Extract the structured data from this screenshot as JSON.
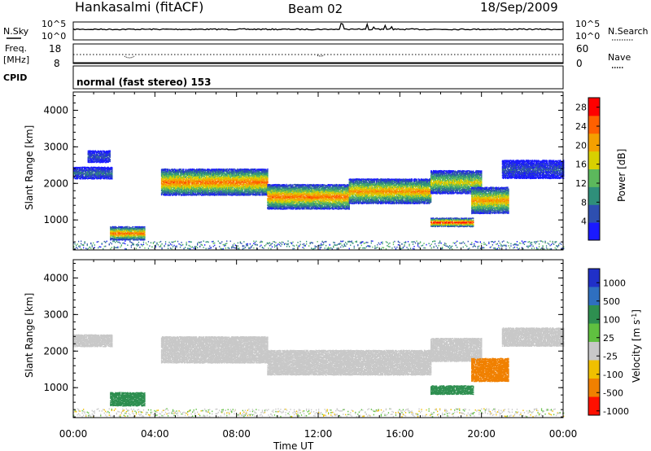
{
  "header": {
    "station": "Hankasalmi (fitACF)",
    "beam": "Beam 02",
    "date": "18/Sep/2009"
  },
  "noise_panel": {
    "left_label": "N.Sky",
    "right_label": "N.Search",
    "left_ticks": [
      "10^5",
      "10^0"
    ],
    "right_ticks": [
      "10^5",
      "10^0"
    ]
  },
  "freq_panel": {
    "left_label_line1": "Freq.",
    "left_label_line2": "[MHz]",
    "left_ticks": [
      "18",
      "8"
    ],
    "right_label": "Nave",
    "right_ticks": [
      "60",
      "0"
    ]
  },
  "cpid_panel": {
    "label": "CPID",
    "text": "normal (fast stereo) 153"
  },
  "x_axis": {
    "title": "Time UT",
    "ticks": [
      "00:00",
      "04:00",
      "08:00",
      "12:00",
      "16:00",
      "20:00",
      "00:00"
    ],
    "range_hours": [
      0,
      24
    ]
  },
  "chart_data": [
    {
      "type": "heatmap",
      "name": "power",
      "ylabel": "Slant Range [km]",
      "y_ticks": [
        "1000",
        "2000",
        "3000",
        "4000"
      ],
      "ylim": [
        180,
        4500
      ],
      "colorbar": {
        "label": "Power [dB]",
        "ticks": [
          "4",
          "8",
          "12",
          "16",
          "20",
          "24",
          "28"
        ],
        "range": [
          0,
          30
        ],
        "colors": [
          "#1a1aff",
          "#2e4fb0",
          "#2f8f7a",
          "#5cb85c",
          "#d8d000",
          "#f4a000",
          "#ff6000",
          "#ff0000"
        ]
      },
      "echo_regions": [
        {
          "t_start": 0.0,
          "t_end": 1.9,
          "r_center": 2300,
          "r_width": 150,
          "peak_db": 8
        },
        {
          "t_start": 0.7,
          "t_end": 1.8,
          "r_center": 2750,
          "r_width": 150,
          "peak_db": 6
        },
        {
          "t_start": 1.8,
          "t_end": 3.5,
          "r_center": 650,
          "r_width": 180,
          "peak_db": 24
        },
        {
          "t_start": 4.3,
          "t_end": 9.5,
          "r_center": 2050,
          "r_width": 350,
          "peak_db": 24
        },
        {
          "t_start": 9.5,
          "t_end": 13.5,
          "r_center": 1650,
          "r_width": 320,
          "peak_db": 24
        },
        {
          "t_start": 13.5,
          "t_end": 17.5,
          "r_center": 1800,
          "r_width": 320,
          "peak_db": 22
        },
        {
          "t_start": 17.5,
          "t_end": 20.0,
          "r_center": 2050,
          "r_width": 300,
          "peak_db": 18
        },
        {
          "t_start": 17.5,
          "t_end": 19.6,
          "r_center": 950,
          "r_width": 120,
          "peak_db": 28
        },
        {
          "t_start": 19.5,
          "t_end": 21.3,
          "r_center": 1550,
          "r_width": 350,
          "peak_db": 22
        },
        {
          "t_start": 21.0,
          "t_end": 24.0,
          "r_center": 2400,
          "r_width": 250,
          "peak_db": 6
        }
      ]
    },
    {
      "type": "heatmap",
      "name": "velocity",
      "ylabel": "Slant Range [km]",
      "y_ticks": [
        "1000",
        "2000",
        "3000",
        "4000"
      ],
      "ylim": [
        180,
        4500
      ],
      "colorbar": {
        "label": "Velocity [m s^-1]",
        "ticks": [
          "1000",
          "500",
          "100",
          "25",
          "-25",
          "-100",
          "-500",
          "-1000"
        ],
        "colors": [
          "#2030c8",
          "#2f6fc0",
          "#2e8f50",
          "#60c040",
          "#c8c8c8",
          "#f0c000",
          "#f08000",
          "#ff1000"
        ]
      },
      "echo_regions": [
        {
          "t_start": 0.0,
          "t_end": 1.9,
          "r_center": 2300,
          "r_width": 150,
          "velocity": 0
        },
        {
          "t_start": 1.8,
          "t_end": 3.5,
          "r_center": 700,
          "r_width": 180,
          "velocity": 80
        },
        {
          "t_start": 4.3,
          "t_end": 9.5,
          "r_center": 2050,
          "r_width": 350,
          "velocity": 0
        },
        {
          "t_start": 9.5,
          "t_end": 17.5,
          "r_center": 1700,
          "r_width": 320,
          "velocity": 0
        },
        {
          "t_start": 17.5,
          "t_end": 20.0,
          "r_center": 2050,
          "r_width": 300,
          "velocity": 0
        },
        {
          "t_start": 17.5,
          "t_end": 19.6,
          "r_center": 950,
          "r_width": 120,
          "velocity": 80
        },
        {
          "t_start": 19.5,
          "t_end": 21.3,
          "r_center": 1500,
          "r_width": 300,
          "velocity": -250
        },
        {
          "t_start": 21.0,
          "t_end": 24.0,
          "r_center": 2400,
          "r_width": 250,
          "velocity": 0
        }
      ]
    }
  ]
}
